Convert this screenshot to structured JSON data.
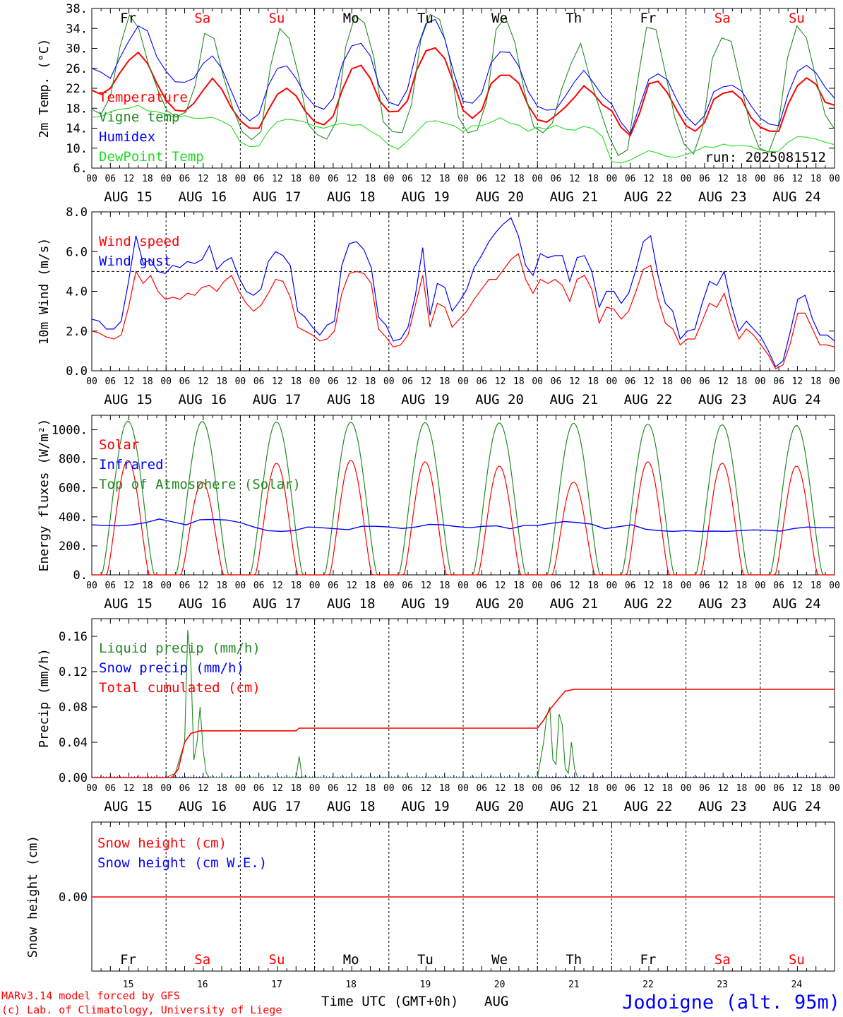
{
  "days": [
    {
      "date": "AUG 15",
      "short": "15",
      "dow": "Fr",
      "weekend": false
    },
    {
      "date": "AUG 16",
      "short": "16",
      "dow": "Sa",
      "weekend": true
    },
    {
      "date": "AUG 17",
      "short": "17",
      "dow": "Su",
      "weekend": true
    },
    {
      "date": "AUG 18",
      "short": "18",
      "dow": "Mo",
      "weekend": false
    },
    {
      "date": "AUG 19",
      "short": "19",
      "dow": "Tu",
      "weekend": false
    },
    {
      "date": "AUG 20",
      "short": "20",
      "dow": "We",
      "weekend": false
    },
    {
      "date": "AUG 21",
      "short": "21",
      "dow": "Th",
      "weekend": false
    },
    {
      "date": "AUG 22",
      "short": "22",
      "dow": "Fr",
      "weekend": false
    },
    {
      "date": "AUG 23",
      "short": "23",
      "dow": "Sa",
      "weekend": true
    },
    {
      "date": "AUG 24",
      "short": "24",
      "dow": "Su",
      "weekend": true
    }
  ],
  "hour_labels": [
    "00",
    "06",
    "12",
    "18"
  ],
  "last_hour_label": "00",
  "run_label": "run: 2025081512",
  "footer": {
    "model_line1": "MARv3.14 model forced by GFS",
    "model_line2": "(c) Lab. of Climatology, University of Liege",
    "xlabel": "Time UTC (GMT+0h)",
    "month": "AUG",
    "location": "Jodoigne (alt. 95m)"
  },
  "colors": {
    "red": "#ff0000",
    "green": "#228B22",
    "lightgreen": "#22dd22",
    "blue": "#0000ff",
    "location": "#0000ff"
  },
  "chart_data": [
    {
      "type": "line",
      "ylabel": "2m Temp. (°C)",
      "ylim": [
        6,
        38
      ],
      "yticks": [
        "6.",
        "10.",
        "14.",
        "18.",
        "22.",
        "26.",
        "30.",
        "34.",
        "38."
      ],
      "ytick_values": [
        6,
        10,
        14,
        18,
        22,
        26,
        30,
        34,
        38
      ],
      "x": "hours since AUG 15 00 UTC, 3-hourly",
      "series": [
        {
          "name": "Temperature",
          "color": "#ff0000",
          "values": [
            21.6,
            20.8,
            22,
            25,
            27.6,
            29.2,
            27,
            23,
            19.6,
            17.6,
            17.4,
            19,
            21.6,
            24,
            21.8,
            18.2,
            15.5,
            14,
            14,
            17.6,
            20.8,
            22,
            20.5,
            17.4,
            15.3,
            14.7,
            16.4,
            21.8,
            25.9,
            26.6,
            24,
            19.5,
            17.3,
            17.4,
            19.5,
            25.7,
            29.5,
            30.1,
            28,
            23,
            17.6,
            16,
            17.6,
            22.9,
            24.6,
            24.6,
            23,
            18.6,
            15.7,
            15.2,
            16.6,
            18.2,
            20.2,
            22.5,
            21,
            18.7,
            17.5,
            14.2,
            12.5,
            17,
            22.9,
            23.4,
            21.1,
            17.6,
            14.5,
            13.4,
            15.1,
            19.8,
            21,
            21.4,
            19.8,
            16.1,
            14.2,
            13.4,
            13.4,
            18.8,
            22.5,
            24.1,
            22.8,
            19.2,
            18.6
          ]
        },
        {
          "name": "Vigne temp",
          "color": "#228B22",
          "values": [
            17.8,
            16.8,
            20.5,
            30.3,
            36.7,
            34,
            27,
            21.8,
            17.5,
            16.3,
            17.2,
            22.6,
            33,
            32,
            24.4,
            18,
            13.3,
            11.7,
            13.3,
            26.3,
            34,
            32,
            24.5,
            14.8,
            12.7,
            11.8,
            15.3,
            30.2,
            36.6,
            35.1,
            28.2,
            15.3,
            13.3,
            13.1,
            18.7,
            31.8,
            36.8,
            35.8,
            28.6,
            16.2,
            13.1,
            13.6,
            19.4,
            33.8,
            36.3,
            31.2,
            21.5,
            14.3,
            13.1,
            15.1,
            22,
            27,
            31,
            24,
            18,
            12.4,
            8.5,
            9.7,
            22.9,
            34.2,
            33.8,
            25.2,
            16.2,
            10.8,
            8.8,
            14.4,
            28,
            32.1,
            31.4,
            23.2,
            14.8,
            10,
            9.2,
            14.2,
            28.1,
            34.5,
            32.1,
            24.2,
            16.7,
            13.8
          ]
        },
        {
          "name": "Humidex",
          "color": "#0000ff",
          "values": [
            26,
            25.2,
            24,
            28,
            31.5,
            34.5,
            33.5,
            28.3,
            25.4,
            23.3,
            23.2,
            24,
            27,
            28.5,
            26,
            21.5,
            17.2,
            15.5,
            16.8,
            22.5,
            26,
            26.5,
            24,
            20.7,
            18.5,
            17.8,
            20,
            27,
            30.5,
            31,
            28.5,
            22.3,
            19.2,
            18.5,
            21.8,
            29.7,
            35,
            35.8,
            32,
            25,
            19.4,
            19,
            21,
            27.1,
            29.3,
            29.2,
            26.4,
            21.4,
            18.4,
            17.6,
            17.8,
            20.4,
            23.3,
            25.6,
            23.2,
            20.5,
            18.8,
            15.2,
            12.9,
            18.4,
            23.8,
            24.9,
            23.7,
            19.7,
            16.4,
            14.6,
            16.5,
            21.3,
            22.3,
            22.6,
            21.4,
            18.5,
            16,
            14.8,
            14.5,
            20.9,
            25.4,
            26.6,
            25.1,
            22.2,
            20
          ]
        },
        {
          "name": "DewPoint Temp",
          "color": "#22dd22",
          "values": [
            16.2,
            16.3,
            17.3,
            17.8,
            18,
            18.6,
            17.5,
            17.3,
            16.8,
            16.2,
            16.5,
            16,
            16,
            16.2,
            15.4,
            14.4,
            11.2,
            10.3,
            10.4,
            13.4,
            15.3,
            15.8,
            15.6,
            15.2,
            14.4,
            14,
            14.6,
            15,
            14.6,
            14.7,
            13.4,
            12.4,
            10.6,
            9.8,
            11.4,
            13.3,
            15.2,
            15.5,
            15,
            14.5,
            13.3,
            14.5,
            14.5,
            15.2,
            16.1,
            15,
            14.6,
            13.4,
            14.2,
            13.8,
            14.6,
            13.8,
            13.6,
            14.4,
            13.9,
            12.3,
            7.3,
            7,
            7.6,
            8.6,
            9.5,
            9,
            8.3,
            8.2,
            8.7,
            9.4,
            10.3,
            10.1,
            10.8,
            10.4,
            10.6,
            10.3,
            9.6,
            9.3,
            9.4,
            11.2,
            12.3,
            12.2,
            11.8,
            11.2,
            10.7
          ]
        }
      ],
      "legend": [
        "Temperature",
        "Vigne temp",
        "Humidex",
        "DewPoint Temp"
      ]
    },
    {
      "type": "line",
      "ylabel": "10m Wind (m/s)",
      "ylim": [
        0,
        8
      ],
      "yticks": [
        "0.0",
        "2.0",
        "4.0",
        "6.0",
        "8.0"
      ],
      "ytick_values": [
        0,
        2,
        4,
        6,
        8
      ],
      "reference_line": 5.0,
      "series": [
        {
          "name": "Wind speed",
          "color": "#ff0000",
          "values": [
            2,
            1.9,
            1.7,
            1.6,
            1.8,
            3.2,
            5,
            4.4,
            4.8,
            4,
            3.6,
            3.7,
            3.6,
            3.9,
            3.8,
            4.2,
            4.3,
            4,
            4.5,
            4.8,
            4,
            3.4,
            3,
            3.3,
            3.9,
            4.6,
            4.5,
            3.7,
            2.2,
            2,
            1.8,
            1.5,
            1.6,
            2,
            3.9,
            4.9,
            5,
            4.9,
            4.4,
            2.1,
            1.7,
            1.2,
            1.3,
            1.8,
            3.3,
            4.8,
            2.2,
            3.4,
            3.2,
            2.2,
            2.6,
            3,
            3.6,
            4.1,
            4.6,
            4.6,
            5.1,
            5.6,
            5.9,
            4.6,
            3.9,
            4.6,
            4.4,
            4.6,
            4.3,
            3.5,
            4.6,
            4.8,
            4.1,
            2.4,
            3.2,
            3.1,
            2.6,
            3,
            4,
            5.1,
            5.3,
            3.6,
            2.4,
            2.1,
            1.3,
            1.6,
            1.6,
            2.5,
            3.4,
            3.2,
            3.9,
            2.6,
            1.6,
            2.1,
            1.8,
            1.3,
            0.8,
            0.1,
            0.3,
            1.4,
            2.9,
            2.9,
            2.1,
            1.3,
            1.3,
            1.2
          ]
        },
        {
          "name": "Wind gust",
          "color": "#0000ff",
          "values": [
            2.6,
            2.5,
            2.1,
            2.1,
            2.5,
            4.5,
            6.8,
            5.4,
            5.6,
            5,
            4.9,
            5.3,
            5.2,
            5.5,
            5.4,
            5.6,
            6.3,
            5.1,
            5.5,
            5.7,
            4.7,
            4,
            3.8,
            4.1,
            5.5,
            6,
            5.8,
            5.3,
            3,
            2.7,
            2.2,
            1.8,
            2.3,
            2.5,
            5.3,
            6.4,
            6.5,
            6.1,
            5.2,
            2.7,
            2.3,
            1.5,
            1.6,
            2.2,
            3.8,
            6.2,
            2.8,
            4.4,
            4.2,
            3,
            3.5,
            4.1,
            5.2,
            5.8,
            6.5,
            7,
            7.4,
            7.7,
            6.8,
            5.3,
            4.8,
            5.9,
            5.7,
            5.8,
            5.8,
            4.5,
            5.7,
            5.8,
            5,
            3.2,
            4,
            4,
            3.4,
            3.9,
            5.1,
            6.5,
            6.8,
            4.8,
            3.4,
            3,
            1.6,
            2,
            2.1,
            3.4,
            4.5,
            4.3,
            5,
            3.3,
            2,
            2.5,
            2.1,
            1.7,
            1,
            0.2,
            0.5,
            2,
            3.6,
            3.8,
            2.6,
            1.8,
            1.8,
            1.5
          ]
        }
      ],
      "legend": [
        "Wind speed",
        "Wind gust"
      ]
    },
    {
      "type": "line",
      "ylabel": "Energy fluxes (W/m²)",
      "ylim": [
        0,
        1100
      ],
      "yticks": [
        "0.",
        "200.",
        "400.",
        "600.",
        "800.",
        "1000."
      ],
      "ytick_values": [
        0,
        200,
        400,
        600,
        800,
        1000
      ],
      "series": [
        {
          "name": "Solar",
          "color": "#ff0000",
          "peaks": [
            790,
            640,
            770,
            790,
            780,
            750,
            640,
            780,
            770,
            750
          ]
        },
        {
          "name": "Infrared",
          "color": "#0000ff",
          "values": [
            345,
            340,
            338,
            345,
            360,
            385,
            365,
            345,
            380,
            382,
            378,
            360,
            330,
            305,
            300,
            305,
            330,
            325,
            318,
            312,
            335,
            335,
            330,
            320,
            330,
            348,
            345,
            333,
            325,
            335,
            338,
            318,
            340,
            340,
            355,
            368,
            360,
            350,
            318,
            332,
            345,
            315,
            305,
            300,
            305,
            300,
            302,
            300,
            305,
            310,
            308,
            302,
            320,
            330,
            325,
            325
          ]
        },
        {
          "name": "Top of Atmosphere (Solar)",
          "color": "#228B22",
          "peaks": [
            1060,
            1058,
            1055,
            1052,
            1050,
            1048,
            1045,
            1040,
            1035,
            1030
          ]
        }
      ],
      "legend": [
        "Solar",
        "Infrared",
        "Top of Atmosphere (Solar)"
      ]
    },
    {
      "type": "line",
      "ylabel": "Precip (mm/h)",
      "ylim": [
        0,
        0.18
      ],
      "yticks": [
        "0.00",
        "0.04",
        "0.08",
        "0.12",
        "0.16"
      ],
      "ytick_values": [
        0,
        0.04,
        0.08,
        0.12,
        0.16
      ],
      "series": [
        {
          "name": "Liquid precip (mm/h)",
          "color": "#228B22",
          "points": [
            [
              24,
              0
            ],
            [
              27,
              0.005
            ],
            [
              30,
              0.04
            ],
            [
              31,
              0.167
            ],
            [
              32,
              0.13
            ],
            [
              33,
              0.02
            ],
            [
              34,
              0.04
            ],
            [
              35,
              0.08
            ],
            [
              36,
              0.03
            ],
            [
              37,
              0.005
            ],
            [
              38,
              0
            ],
            [
              66,
              0
            ],
            [
              67,
              0.024
            ],
            [
              68,
              0
            ],
            [
              144,
              0
            ],
            [
              145,
              0.02
            ],
            [
              146,
              0.04
            ],
            [
              147,
              0.07
            ],
            [
              148,
              0.08
            ],
            [
              149,
              0.02
            ],
            [
              150,
              0.015
            ],
            [
              151,
              0.072
            ],
            [
              152,
              0.06
            ],
            [
              153,
              0.01
            ],
            [
              154,
              0.005
            ],
            [
              155,
              0.04
            ],
            [
              156,
              0.01
            ],
            [
              157,
              0
            ]
          ]
        },
        {
          "name": "Snow precip (mm/h)",
          "color": "#0000ff",
          "values": []
        },
        {
          "name": "Total cumulated (cm)",
          "color": "#ff0000",
          "points": [
            [
              0,
              0
            ],
            [
              26,
              0
            ],
            [
              28,
              0.01
            ],
            [
              30,
              0.04
            ],
            [
              32,
              0.05
            ],
            [
              35,
              0.053
            ],
            [
              66,
              0.053
            ],
            [
              67,
              0.056
            ],
            [
              144,
              0.056
            ],
            [
              146,
              0.065
            ],
            [
              148,
              0.077
            ],
            [
              151,
              0.09
            ],
            [
              153,
              0.098
            ],
            [
              156,
              0.1
            ],
            [
              240,
              0.1
            ]
          ]
        }
      ],
      "legend": [
        "Liquid precip (mm/h)",
        "Snow precip (mm/h)",
        "Total cumulated (cm)"
      ]
    },
    {
      "type": "line",
      "ylabel": "Snow height (cm)",
      "yticks": [
        "0.00"
      ],
      "ytick_values": [
        0
      ],
      "series": [
        {
          "name": "Snow height (cm)",
          "color": "#ff0000",
          "values": [
            0,
            0
          ]
        },
        {
          "name": "Snow height (cm W.E.)",
          "color": "#0000ff",
          "values": [
            0,
            0
          ]
        }
      ],
      "legend": [
        "Snow height (cm)",
        "Snow height (cm W.E.)"
      ]
    }
  ]
}
